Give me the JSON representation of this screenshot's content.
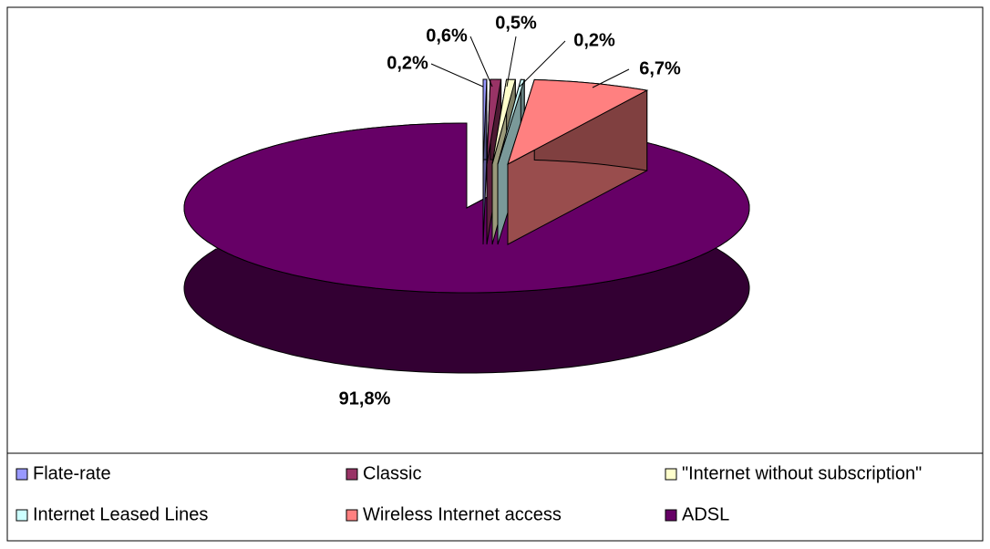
{
  "chart_data": {
    "type": "pie3d",
    "categories": [
      "Flate-rate",
      "Classic",
      "\"Internet without subscription\"",
      "Internet Leased Lines",
      "Wireless Internet access",
      "ADSL"
    ],
    "values": [
      0.2,
      0.6,
      0.5,
      0.2,
      6.7,
      91.8
    ],
    "value_labels": [
      "0,2%",
      "0,6%",
      "0,5%",
      "0,2%",
      "6,7%",
      "91,8%"
    ],
    "colors": [
      "#9999ff",
      "#993366",
      "#ffffcc",
      "#ccffff",
      "#ff8080",
      "#660066"
    ],
    "legend": "bottom"
  }
}
